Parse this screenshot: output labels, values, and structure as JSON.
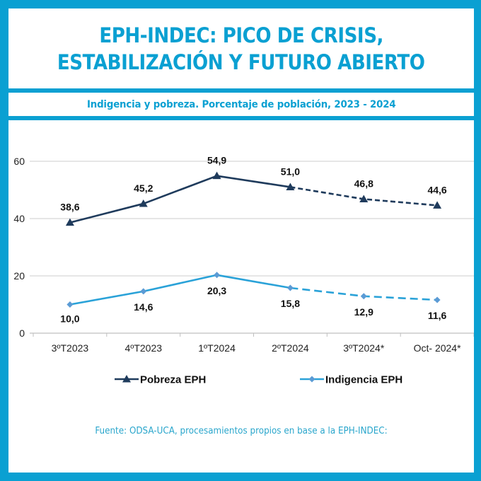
{
  "header": {
    "title_line1": "EPH-INDEC: PICO DE CRISIS,",
    "title_line2": "ESTABILIZACIÓN Y FUTURO ABIERTO",
    "subtitle": "Indigencia y pobreza. Porcentaje de población, 2023 - 2024"
  },
  "footer": {
    "source": "Fuente: ODSA-UCA, procesamientos propios en base a la EPH-INDEC:"
  },
  "colors": {
    "frame": "#0aa0d2",
    "pobreza": "#1f3b5c",
    "indigencia": "#2aa2d8",
    "indigencia_marker": "#5b9bd5",
    "grid": "#d6d6d6"
  },
  "chart_data": {
    "type": "line",
    "title": "Indigencia y pobreza. Porcentaje de población, 2023 - 2024",
    "xlabel": "",
    "ylabel": "",
    "categories": [
      "3ºT2023",
      "4ºT2023",
      "1ºT2024",
      "2ºT2024",
      "3ºT2024*",
      "Oct- 2024*"
    ],
    "ylim": [
      0,
      60
    ],
    "yticks": [
      0,
      20,
      40,
      60
    ],
    "grid": true,
    "legend_position": "bottom",
    "series": [
      {
        "name": "Pobreza EPH",
        "marker": "triangle",
        "values": [
          38.6,
          45.2,
          54.9,
          51.0,
          46.8,
          44.6
        ],
        "labels": [
          "38,6",
          "45,2",
          "54,9",
          "51,0",
          "46,8",
          "44,6"
        ],
        "label_position": "above",
        "dashed_from_index": 3
      },
      {
        "name": "Indigencia EPH",
        "marker": "diamond",
        "values": [
          10.0,
          14.6,
          20.3,
          15.8,
          12.9,
          11.6
        ],
        "labels": [
          "10,0",
          "14,6",
          "20,3",
          "15,8",
          "12,9",
          "11,6"
        ],
        "label_position": "below",
        "dashed_from_index": 3
      }
    ]
  }
}
